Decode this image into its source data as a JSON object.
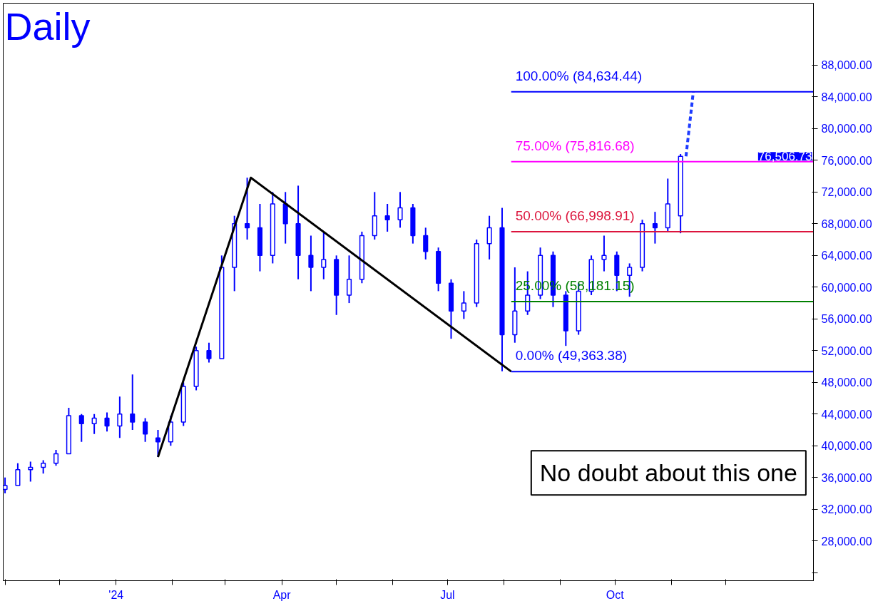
{
  "chart_data": {
    "type": "candlestick",
    "title": "Daily",
    "x": [
      "2023-11-01",
      "2023-11-08",
      "2023-11-15",
      "2023-11-22",
      "2023-11-29",
      "2023-12-06",
      "2023-12-13",
      "2023-12-20",
      "2023-12-27",
      "2024-01-03",
      "2024-01-10",
      "2024-01-17",
      "2024-01-24",
      "2024-01-31",
      "2024-02-07",
      "2024-02-14",
      "2024-02-21",
      "2024-02-28",
      "2024-03-06",
      "2024-03-13",
      "2024-03-20",
      "2024-03-27",
      "2024-04-03",
      "2024-04-10",
      "2024-04-17",
      "2024-04-24",
      "2024-05-01",
      "2024-05-08",
      "2024-05-15",
      "2024-05-22",
      "2024-05-29",
      "2024-06-05",
      "2024-06-12",
      "2024-06-19",
      "2024-06-26",
      "2024-07-03",
      "2024-07-10",
      "2024-07-17",
      "2024-07-24",
      "2024-07-31",
      "2024-08-07",
      "2024-08-14",
      "2024-08-21",
      "2024-08-28",
      "2024-09-04",
      "2024-09-11",
      "2024-09-18",
      "2024-09-25",
      "2024-10-02",
      "2024-10-09",
      "2024-10-16",
      "2024-10-23",
      "2024-10-30",
      "2024-11-06"
    ],
    "ohlc": [
      [
        34500,
        36000,
        34000,
        35000
      ],
      [
        35000,
        37800,
        35000,
        37000
      ],
      [
        37000,
        38000,
        35500,
        37300
      ],
      [
        37300,
        38200,
        36500,
        37800
      ],
      [
        37800,
        39500,
        37500,
        39000
      ],
      [
        39000,
        44800,
        39000,
        43800
      ],
      [
        43800,
        44000,
        40500,
        42800
      ],
      [
        42800,
        44000,
        41500,
        43500
      ],
      [
        43500,
        44200,
        41800,
        42500
      ],
      [
        42500,
        46200,
        41000,
        44000
      ],
      [
        44000,
        49000,
        42000,
        43000
      ],
      [
        43000,
        43500,
        40500,
        41500
      ],
      [
        41000,
        42000,
        38600,
        40500
      ],
      [
        40500,
        43800,
        40000,
        43000
      ],
      [
        43000,
        48000,
        42500,
        47500
      ],
      [
        47500,
        52500,
        47000,
        52000
      ],
      [
        52000,
        53000,
        50500,
        51000
      ],
      [
        51000,
        64000,
        51000,
        62500
      ],
      [
        62500,
        69000,
        59500,
        68000
      ],
      [
        68000,
        73800,
        66000,
        67500
      ],
      [
        67500,
        70500,
        62000,
        64000
      ],
      [
        64000,
        72000,
        63000,
        70500
      ],
      [
        70500,
        72000,
        65500,
        68000
      ],
      [
        68000,
        72800,
        61000,
        64000
      ],
      [
        64000,
        66500,
        59500,
        62500
      ],
      [
        62500,
        67000,
        61000,
        63500
      ],
      [
        63500,
        64000,
        56500,
        59000
      ],
      [
        59000,
        64000,
        58000,
        61000
      ],
      [
        61000,
        67000,
        60500,
        66500
      ],
      [
        66500,
        72000,
        66000,
        69000
      ],
      [
        69000,
        70500,
        67000,
        68500
      ],
      [
        68500,
        72000,
        67500,
        70000
      ],
      [
        70000,
        70500,
        65500,
        66500
      ],
      [
        66500,
        67500,
        63500,
        64500
      ],
      [
        64500,
        65000,
        59500,
        60500
      ],
      [
        60500,
        61000,
        53500,
        57000
      ],
      [
        57000,
        59500,
        56000,
        58000
      ],
      [
        58000,
        66000,
        57500,
        65500
      ],
      [
        65500,
        69000,
        63500,
        67500
      ],
      [
        67500,
        70000,
        49400,
        54000
      ],
      [
        54000,
        62500,
        53000,
        57000
      ],
      [
        57000,
        62000,
        56500,
        59000
      ],
      [
        59000,
        65000,
        58500,
        64000
      ],
      [
        64000,
        64500,
        57500,
        59000
      ],
      [
        59000,
        59500,
        52600,
        54500
      ],
      [
        54500,
        60500,
        54000,
        59500
      ],
      [
        59500,
        64000,
        59000,
        63500
      ],
      [
        63500,
        66500,
        62000,
        64000
      ],
      [
        64000,
        64500,
        59500,
        61500
      ],
      [
        61500,
        63000,
        58800,
        62500
      ],
      [
        62500,
        68500,
        62000,
        68000
      ],
      [
        68000,
        69500,
        65500,
        67500
      ],
      [
        67500,
        73700,
        67000,
        70500
      ],
      [
        69000,
        76800,
        66800,
        76506.73
      ]
    ],
    "color": "#0000ff",
    "series": [
      {
        "type": "line",
        "color": "#000000",
        "x": [
          "2024-01-24",
          "2024-03-15",
          "2024-08-05"
        ],
        "values": [
          38600,
          73800,
          49363.38
        ]
      },
      {
        "type": "line",
        "color": "#1e3cff",
        "line_style": "dashed",
        "x": [
          "2024-11-09",
          "2024-11-13"
        ],
        "values": [
          76500,
          84600
        ]
      }
    ],
    "ref_lines": [
      {
        "axis": "y",
        "value": 84634.44,
        "label": "100.00% (84,634.44)",
        "color": "#0000ff"
      },
      {
        "axis": "y",
        "value": 75816.68,
        "label": "75.00% (75,816.68)",
        "color": "#ff00ff"
      },
      {
        "axis": "y",
        "value": 66998.91,
        "label": "50.00% (66,998.91)",
        "color": "#dc143c"
      },
      {
        "axis": "y",
        "value": 58181.15,
        "label": "25.00% (58,181.15)",
        "color": "#008000"
      },
      {
        "axis": "y",
        "value": 49363.38,
        "label": "0.00% (49,363.38)",
        "color": "#0000ff"
      }
    ],
    "xlim": [
      "2023-10-31",
      "2025-01-18"
    ],
    "xticks": [
      {
        "value": "2023-11-01",
        "label": null
      },
      {
        "value": "2023-12-01",
        "label": null
      },
      {
        "value": "2024-01-01",
        "label": "'24"
      },
      {
        "value": "2024-02-01",
        "label": null
      },
      {
        "value": "2024-03-01",
        "label": null
      },
      {
        "value": "2024-04-01",
        "label": "Apr"
      },
      {
        "value": "2024-05-01",
        "label": null
      },
      {
        "value": "2024-06-01",
        "label": null
      },
      {
        "value": "2024-07-01",
        "label": "Jul"
      },
      {
        "value": "2024-08-01",
        "label": null
      },
      {
        "value": "2024-09-01",
        "label": null
      },
      {
        "value": "2024-10-01",
        "label": "Oct"
      },
      {
        "value": "2024-11-01",
        "label": null
      },
      {
        "value": "2024-12-01",
        "label": null
      }
    ],
    "ylim": [
      23000,
      95800
    ],
    "yticks": [
      {
        "value": 24000,
        "label": null
      },
      {
        "value": 28000,
        "label": "28,000.00"
      },
      {
        "value": 32000,
        "label": "32,000.00"
      },
      {
        "value": 36000,
        "label": "36,000.00"
      },
      {
        "value": 40000,
        "label": "40,000.00"
      },
      {
        "value": 44000,
        "label": "44,000.00"
      },
      {
        "value": 48000,
        "label": "48,000.00"
      },
      {
        "value": 52000,
        "label": "52,000.00"
      },
      {
        "value": 56000,
        "label": "56,000.00"
      },
      {
        "value": 60000,
        "label": "60,000.00"
      },
      {
        "value": 64000,
        "label": "64,000.00"
      },
      {
        "value": 68000,
        "label": "68,000.00"
      },
      {
        "value": 72000,
        "label": "72,000.00"
      },
      {
        "value": 76000,
        "label": "76,000.00"
      },
      {
        "value": 80000,
        "label": "80,000.00"
      },
      {
        "value": 84000,
        "label": "84,000.00"
      },
      {
        "value": 88000,
        "label": "88,000.00"
      }
    ],
    "annotations": [
      "No doubt about this one",
      "76,506.73"
    ],
    "grid": false
  }
}
